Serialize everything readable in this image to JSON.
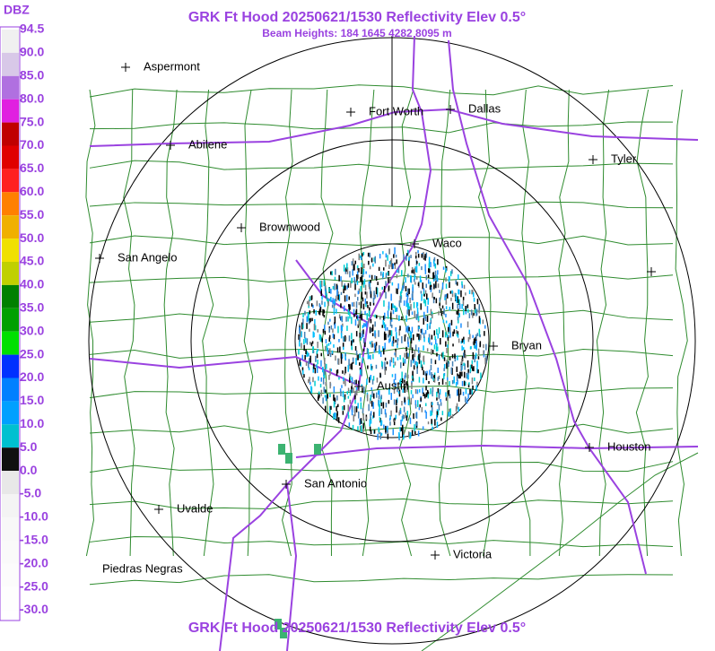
{
  "header": {
    "title": "GRK Ft Hood 20250621/1530 Reflectivity Elev 0.5°",
    "subtitle": "Beam Heights: 184 1645 4282 8095 m"
  },
  "legend": {
    "unit": "DBZ",
    "labels": [
      "94.5",
      "90.0",
      "85.0",
      "80.0",
      "75.0",
      "70.0",
      "65.0",
      "60.0",
      "55.0",
      "50.0",
      "45.0",
      "40.0",
      "35.0",
      "30.0",
      "25.0",
      "20.0",
      "15.0",
      "10.0",
      "5.0",
      "0.0",
      "-5.0",
      "-10.0",
      "-15.0",
      "-20.0",
      "-25.0",
      "-30.0"
    ]
  },
  "cities": [
    "Aspermont",
    "Fort Worth",
    "Dallas",
    "Abilene",
    "Tyler",
    "Brownwood",
    "Waco",
    "San Angelo",
    "Bryan",
    "Austin",
    "Houston",
    "San Antonio",
    "Uvalde",
    "Piedras Negras",
    "Victoria"
  ],
  "footer": {
    "title": "GRK Ft Hood 20250621/1530 Reflectivity Elev 0.5°"
  }
}
